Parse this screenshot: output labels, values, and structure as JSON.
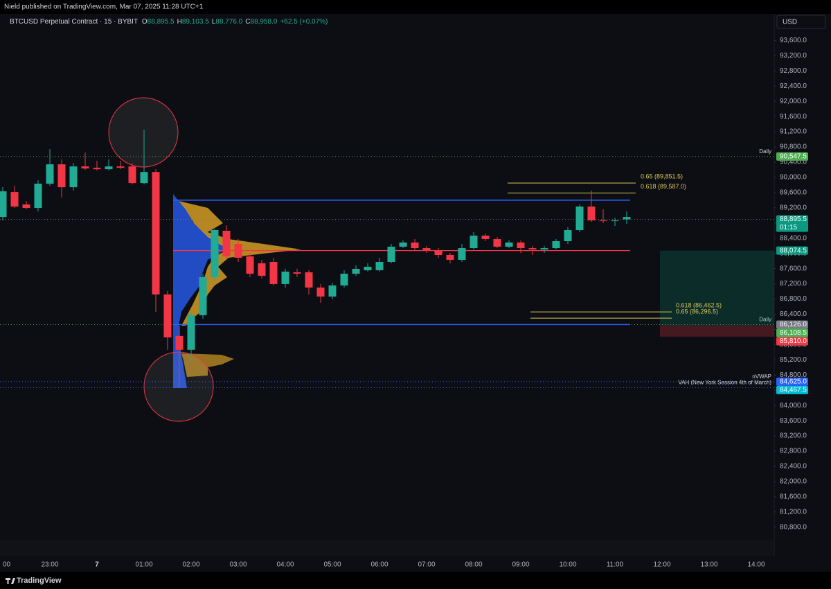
{
  "header": {
    "publisher": "Nield published on TradingView.com, Mar 07, 2025 11:28 UTC+1"
  },
  "legend": {
    "symbol": "BTCUSD Perpetual Contract · 15 · BYBIT",
    "o_label": "O",
    "o": "88,895.5",
    "h_label": "H",
    "h": "89,103.5",
    "l_label": "L",
    "l": "88,776.0",
    "c_label": "C",
    "c": "88,958.0",
    "change": "+62.5 (+0.07%)"
  },
  "currency": "USD",
  "footer": {
    "brand": "TradingView"
  },
  "chart_data": {
    "type": "candlestick",
    "up_color": "#22ab94",
    "down_color": "#f23645",
    "grid": false,
    "categories": [
      "00",
      null,
      null,
      null,
      "23:00",
      null,
      null,
      null,
      "7",
      null,
      null,
      null,
      "01:00",
      null,
      null,
      null,
      "02:00",
      null,
      null,
      null,
      "03:00",
      null,
      null,
      null,
      "04:00",
      null,
      null,
      null,
      "05:00",
      null,
      null,
      null,
      "06:00",
      null,
      null,
      null,
      "07:00",
      null,
      null,
      null,
      "08:00",
      null,
      null,
      null,
      "09:00",
      null,
      null,
      null,
      "10:00",
      null,
      null,
      null,
      "11:00",
      null,
      null,
      null,
      "12:00",
      null,
      null,
      null,
      "13:00",
      null,
      null,
      null,
      "14:00"
    ],
    "open": [
      88959,
      89615,
      89287,
      89196,
      89833,
      90343,
      89742,
      90288,
      90252,
      90215,
      90288,
      90288,
      89851,
      90142,
      86921,
      85829,
      85465,
      86375,
      87376,
      88596,
      88250,
      87922,
      87740,
      87776,
      87194,
      87503,
      87503,
      87103,
      86866,
      87158,
      87467,
      87558,
      87558,
      87776,
      88177,
      88286,
      88140,
      88068,
      87958,
      87831,
      88140,
      88468,
      88377,
      88177,
      88286,
      88140,
      88104,
      88140,
      88322,
      88614,
      89232,
      88868,
      88850,
      88895.5,
      null,
      null,
      null,
      null,
      null,
      null,
      null,
      null,
      null,
      null,
      null
    ],
    "high": [
      89742,
      89778,
      89378,
      89924,
      90743,
      90470,
      90379,
      90652,
      90434,
      90470,
      90434,
      90361,
      91253,
      90215,
      87012,
      86102,
      86466,
      87467,
      88650,
      88741,
      88377,
      88013,
      87831,
      87886,
      87595,
      87595,
      87558,
      87194,
      87230,
      87558,
      87685,
      87740,
      87886,
      88250,
      88341,
      88377,
      88195,
      88140,
      88013,
      88250,
      88559,
      88523,
      88432,
      88341,
      88341,
      88195,
      88195,
      88377,
      88686,
      89287,
      89651,
      89160,
      88941,
      89103.5,
      null,
      null,
      null,
      null,
      null,
      null,
      null,
      null,
      null,
      null,
      null
    ],
    "low": [
      88868,
      89196,
      89160,
      89105,
      89778,
      89469,
      89651,
      90197,
      90179,
      90179,
      90215,
      89815,
      89815,
      86466,
      85465,
      84464,
      85192,
      86284,
      87285,
      87831,
      87776,
      87376,
      87340,
      87158,
      87103,
      87376,
      86921,
      86703,
      86794,
      87103,
      87412,
      87522,
      87522,
      87740,
      88140,
      88068,
      88013,
      87886,
      87740,
      87776,
      88104,
      88322,
      88140,
      88140,
      88013,
      87958,
      88013,
      88104,
      88250,
      88559,
      88832,
      88796,
      88723,
      88776.0,
      null,
      null,
      null,
      null,
      null,
      null,
      null,
      null,
      null,
      null,
      null
    ],
    "close": [
      89633,
      89232,
      89196,
      89833,
      90343,
      89742,
      90288,
      90233,
      90215,
      90288,
      90252,
      89851,
      90142,
      86921,
      85793,
      85465,
      86375,
      87376,
      88614,
      87922,
      87886,
      87467,
      87412,
      87194,
      87522,
      87467,
      87103,
      86866,
      87158,
      87467,
      87595,
      87649,
      87776,
      88177,
      88286,
      88140,
      88068,
      87958,
      87831,
      88140,
      88468,
      88377,
      88177,
      88286,
      88140,
      88104,
      88140,
      88322,
      88614,
      89232,
      88868,
      88850,
      88868,
      88958.0,
      null,
      null,
      null,
      null,
      null,
      null,
      null,
      null,
      null,
      null,
      null
    ],
    "ylim": [
      80450,
      94300
    ],
    "yticks": [
      {
        "value": 80800,
        "label": "80,800.0"
      },
      {
        "value": 81200,
        "label": "81,200.0"
      },
      {
        "value": 81600,
        "label": "81,600.0"
      },
      {
        "value": 82000,
        "label": "82,000.0"
      },
      {
        "value": 82400,
        "label": "82,400.0"
      },
      {
        "value": 82800,
        "label": "82,800.0"
      },
      {
        "value": 83200,
        "label": "83,200.0"
      },
      {
        "value": 83600,
        "label": "83,600.0"
      },
      {
        "value": 84000,
        "label": "84,000.0"
      },
      {
        "value": 84400,
        "label": "84,400.0"
      },
      {
        "value": 84800,
        "label": "84,800.0"
      },
      {
        "value": 85200,
        "label": "85,200.0"
      },
      {
        "value": 85600,
        "label": "85,600.0"
      },
      {
        "value": 86000,
        "label": "86,000.0"
      },
      {
        "value": 86400,
        "label": "86,400.0"
      },
      {
        "value": 86800,
        "label": "86,800.0"
      },
      {
        "value": 87200,
        "label": "87,200.0"
      },
      {
        "value": 87600,
        "label": "87,600.0"
      },
      {
        "value": 88000,
        "label": "88,000.0"
      },
      {
        "value": 88400,
        "label": "88,400.0"
      },
      {
        "value": 88800,
        "label": "88,800.0"
      },
      {
        "value": 89200,
        "label": "89,200.0"
      },
      {
        "value": 89600,
        "label": "89,600.0"
      },
      {
        "value": 90000,
        "label": "90,000.0"
      },
      {
        "value": 90400,
        "label": "90,400.0"
      },
      {
        "value": 90800,
        "label": "90,800.0"
      },
      {
        "value": 91200,
        "label": "91,200.0"
      },
      {
        "value": 91600,
        "label": "91,600.0"
      },
      {
        "value": 92000,
        "label": "92,000.0"
      },
      {
        "value": 92400,
        "label": "92,400.0"
      },
      {
        "value": 92800,
        "label": "92,800.0"
      },
      {
        "value": 93200,
        "label": "93,200.0"
      },
      {
        "value": 93600,
        "label": "93,600.0"
      }
    ],
    "levels": [
      {
        "value": 90547.5,
        "label": "90,547.5",
        "color": "#4caf50",
        "line": "#4caf50",
        "text": "Daily"
      },
      {
        "value": 88895.5,
        "label": "88,895.5",
        "sub": "01:15",
        "color": "#089981",
        "line": "#787b86"
      },
      {
        "value": 88074.5,
        "label": "88,074.5",
        "color": "#089981"
      },
      {
        "value": 86126.0,
        "label": "86,126.0",
        "color": "#787b86",
        "line": "#4caf50",
        "text": "Daily"
      },
      {
        "value": 86108.5,
        "label": "86,108.5",
        "color": "#4caf50"
      },
      {
        "value": 85810.0,
        "label": "85,810.0",
        "color": "#f23645"
      },
      {
        "value": 84625.0,
        "label": "84,625.0",
        "color": "#2962ff",
        "line": "#2962ff",
        "text": "nVWAP"
      },
      {
        "value": 84467.5,
        "label": "84,467.5",
        "color": "#00bcd4",
        "line": "#2962ff",
        "text": "VAH (New York Session 4th of March)"
      }
    ],
    "profile": {
      "high": 89400,
      "low": 86130,
      "color": "#2962ff",
      "poc_color": "#f23645"
    },
    "fibs": [
      {
        "value": 89851.5,
        "label": "0.65 (89,851.5)"
      },
      {
        "value": 89587.0,
        "label": "0.618 (89,587.0)"
      },
      {
        "value": 86462.5,
        "label": "0.618 (86,462.5)"
      },
      {
        "value": 86296.5,
        "label": "0.65 (86,296.5)"
      }
    ],
    "fib_color": "#d9c65a"
  }
}
